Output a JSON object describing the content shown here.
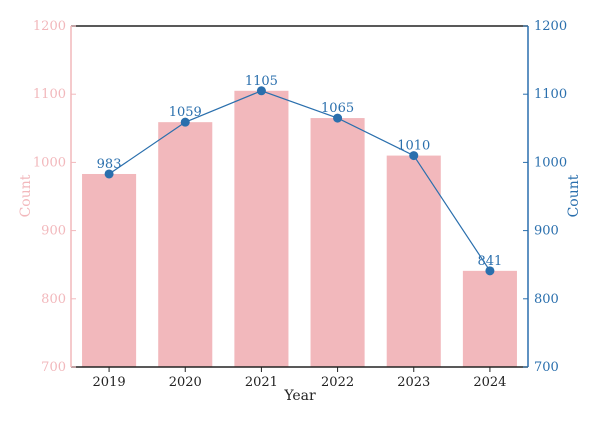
{
  "chart_data": {
    "type": "bar+line",
    "title": "",
    "xlabel": "Year",
    "ylabel_left": "Count",
    "ylabel_right": "Count",
    "categories": [
      "2019",
      "2020",
      "2021",
      "2022",
      "2023",
      "2024"
    ],
    "ylim": [
      700,
      1200
    ],
    "yticks": [
      "700",
      "800",
      "900",
      "1000",
      "1100",
      "1200"
    ],
    "series": [
      {
        "type": "bar",
        "values": [
          983,
          1059,
          1105,
          1065,
          1010,
          841
        ],
        "color": "#f2b8bc"
      },
      {
        "type": "line",
        "values": [
          983,
          1059,
          1105,
          1065,
          1010,
          841
        ],
        "color": "#2a6fad",
        "labels": [
          "983",
          "1059",
          "1105",
          "1065",
          "1010",
          "841"
        ]
      }
    ],
    "colors": {
      "left_axis": "#f2b8bc",
      "right_axis": "#2a6fad",
      "frame": "#222222"
    },
    "grid": false,
    "legend": "none"
  }
}
